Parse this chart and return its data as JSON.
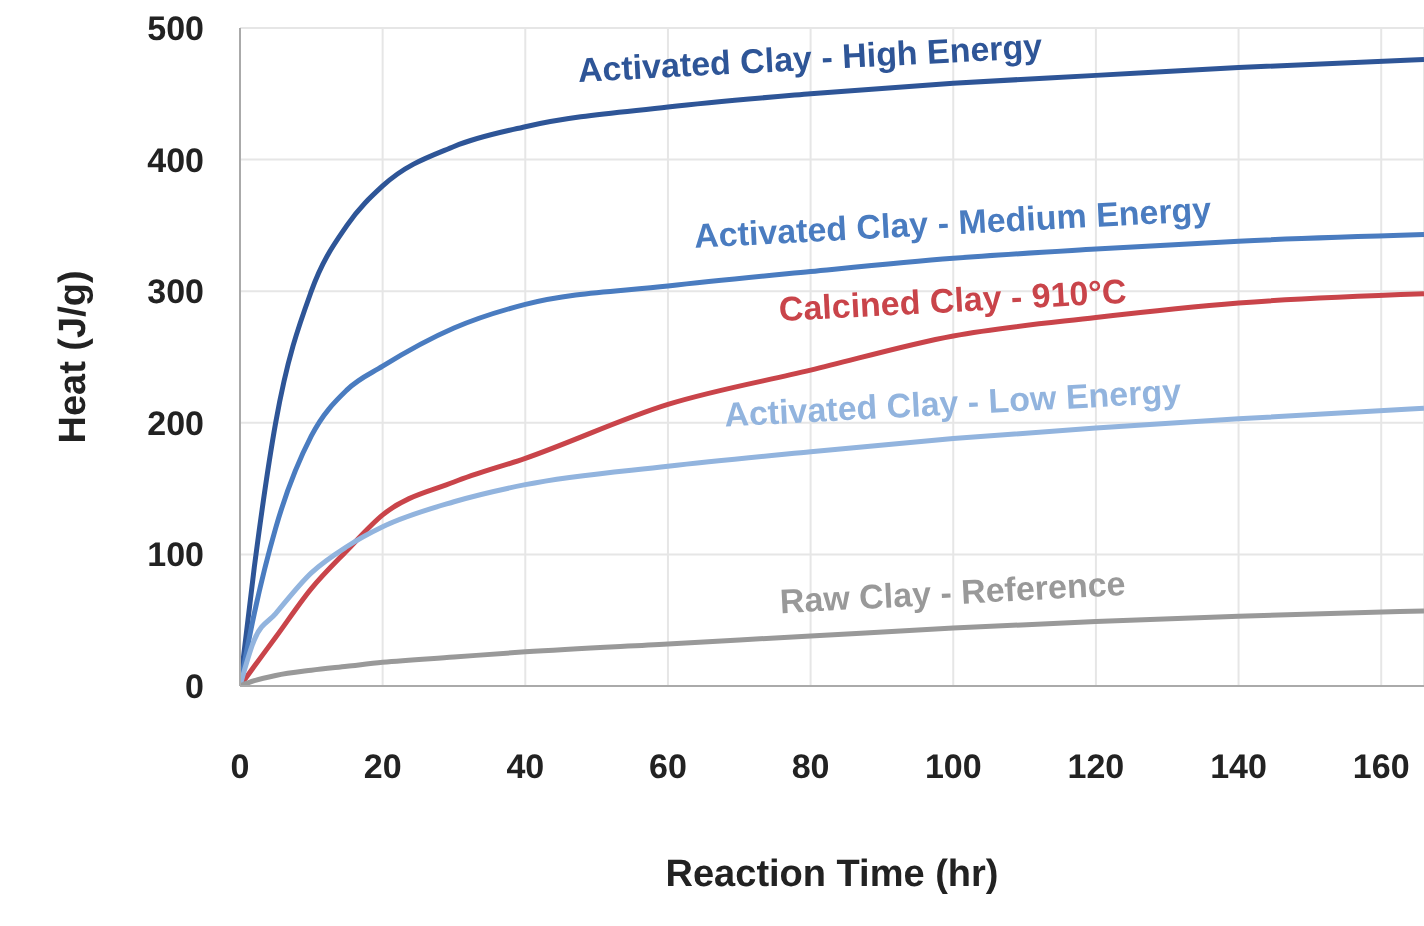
{
  "chart_data": {
    "type": "line",
    "xlabel": "Reaction Time (hr)",
    "ylabel": "Heat (J/g)",
    "x": [
      0,
      2,
      5,
      10,
      15,
      20,
      30,
      40,
      60,
      80,
      100,
      120,
      140,
      166
    ],
    "xlim": [
      0,
      166
    ],
    "xticks": [
      0,
      20,
      40,
      60,
      80,
      100,
      120,
      140,
      160
    ],
    "ylim": [
      0,
      500
    ],
    "yticks": [
      0,
      100,
      200,
      300,
      400,
      500
    ],
    "grid": true,
    "legend": false,
    "marker": "none",
    "line_style": "solid",
    "series": [
      {
        "name": "Activated Clay - High Energy",
        "color": "#2e5597",
        "values": [
          0,
          90,
          200,
          300,
          350,
          380,
          410,
          425,
          440,
          450,
          458,
          464,
          470,
          476
        ]
      },
      {
        "name": "Activated Clay - Medium Energy",
        "color": "#4a7cc0",
        "values": [
          0,
          55,
          120,
          190,
          225,
          243,
          272,
          290,
          304,
          315,
          325,
          332,
          338,
          343
        ]
      },
      {
        "name": "Calcined Clay - 910°C",
        "color": "#c9444a",
        "values": [
          0,
          15,
          37,
          74,
          103,
          130,
          155,
          173,
          214,
          240,
          266,
          280,
          291,
          298
        ]
      },
      {
        "name": "Activated Clay - Low Energy",
        "color": "#92b4de",
        "values": [
          0,
          35,
          55,
          86,
          106,
          121,
          140,
          153,
          167,
          178,
          188,
          196,
          203,
          211
        ]
      },
      {
        "name": "Raw Clay - Reference",
        "color": "#999999",
        "values": [
          0,
          4,
          8,
          12,
          15,
          18,
          22,
          26,
          32,
          38,
          44,
          49,
          53,
          57
        ]
      }
    ]
  }
}
